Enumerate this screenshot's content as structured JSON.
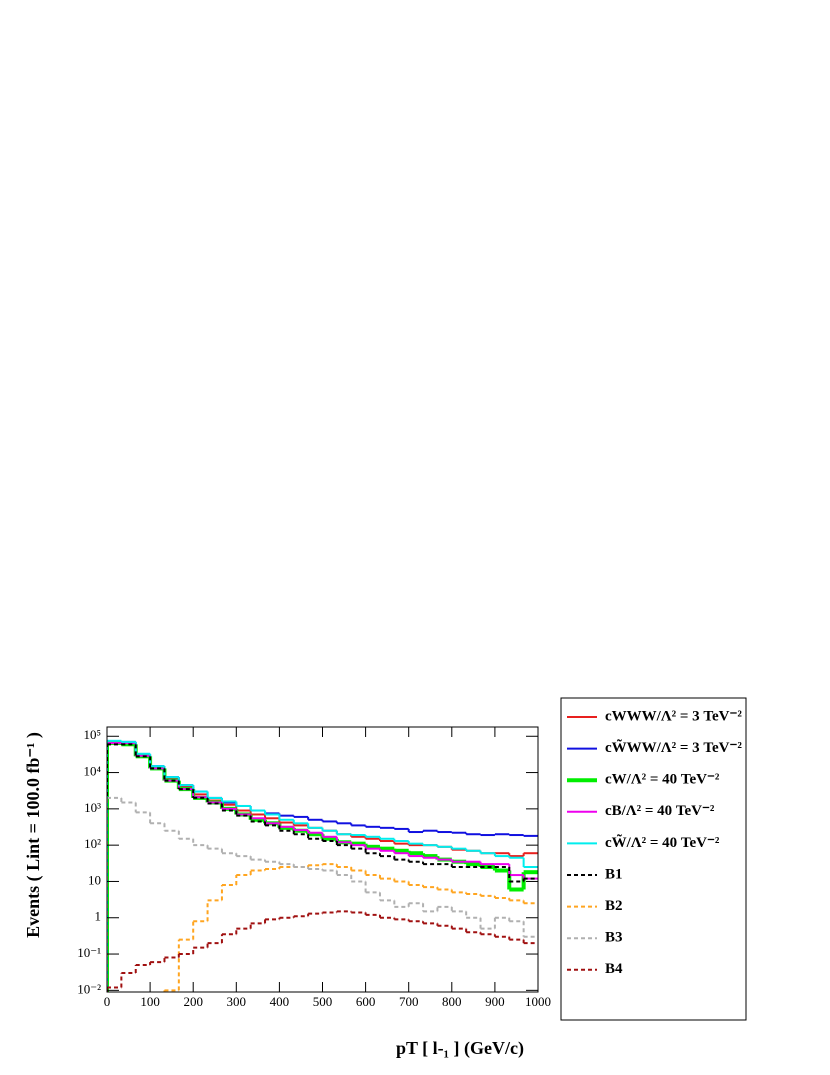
{
  "chart_data": {
    "type": "histogram",
    "xlabel": "pT [ l-₁ ] (GeV/c)",
    "ylabel": "Events ( Lint = 100.0 fb⁻¹ )",
    "log_y": true,
    "xlim": [
      0,
      1000
    ],
    "ylim": [
      0.009,
      180000
    ],
    "xticks": [
      0,
      100,
      200,
      300,
      400,
      500,
      600,
      700,
      800,
      900,
      1000
    ],
    "yticks": [
      {
        "value": 0.01,
        "label": "10⁻²"
      },
      {
        "value": 0.1,
        "label": "10⁻¹"
      },
      1,
      10,
      {
        "value": 100,
        "label": "10²"
      },
      {
        "value": 1000,
        "label": "10³"
      },
      {
        "value": 10000,
        "label": "10⁴"
      },
      {
        "value": 100000,
        "label": "10⁵"
      }
    ],
    "bins": [
      0,
      33.33,
      66.67,
      100,
      133.33,
      166.67,
      200,
      233.33,
      266.67,
      300,
      333.33,
      366.67,
      400,
      433.33,
      466.67,
      500,
      533.33,
      566.67,
      600,
      633.33,
      666.67,
      700,
      733.33,
      766.67,
      800,
      833.33,
      866.67,
      900,
      933.33,
      966.67,
      1000
    ],
    "series": [
      {
        "name": "cWWW/Λ² = 3 TeV⁻²",
        "color": "#e8201e",
        "style": "solid",
        "values": [
          70000,
          65000,
          30000,
          14000,
          7000,
          4000,
          2500,
          1700,
          1300,
          900,
          700,
          550,
          420,
          350,
          300,
          250,
          200,
          170,
          150,
          130,
          110,
          100,
          100,
          90,
          75,
          70,
          60,
          60,
          50,
          60
        ]
      },
      {
        "name": "cW̃WW/Λ² = 3 TeV⁻²",
        "color": "#1010e0",
        "style": "solid",
        "values": [
          70000,
          70000,
          32000,
          15000,
          7500,
          4500,
          3000,
          2000,
          1500,
          1200,
          900,
          750,
          650,
          600,
          500,
          450,
          400,
          350,
          320,
          300,
          280,
          230,
          250,
          230,
          220,
          200,
          190,
          200,
          190,
          180
        ]
      },
      {
        "name": "cW/Λ² = 40 TeV⁻²",
        "color": "#00ee00",
        "style": "thick",
        "values": [
          65000,
          60000,
          28000,
          13000,
          6000,
          3500,
          2000,
          1500,
          1000,
          700,
          500,
          400,
          300,
          250,
          200,
          150,
          120,
          110,
          90,
          80,
          70,
          60,
          50,
          40,
          35,
          30,
          25,
          20,
          6,
          18
        ]
      },
      {
        "name": "cB/Λ² = 40 TeV⁻²",
        "color": "#ee00ee",
        "style": "solid",
        "values": [
          65000,
          65000,
          29000,
          13000,
          6000,
          3500,
          2100,
          1500,
          1000,
          700,
          550,
          400,
          320,
          260,
          220,
          170,
          120,
          100,
          80,
          70,
          60,
          50,
          45,
          40,
          35,
          35,
          30,
          30,
          15,
          12
        ]
      },
      {
        "name": "cW̃/Λ² = 40 TeV⁻²",
        "color": "#00eeee",
        "style": "solid",
        "values": [
          75000,
          70000,
          33000,
          15000,
          7500,
          4500,
          3000,
          2000,
          1600,
          1200,
          900,
          700,
          500,
          400,
          300,
          250,
          200,
          190,
          170,
          150,
          130,
          110,
          100,
          90,
          80,
          70,
          60,
          50,
          45,
          25
        ]
      },
      {
        "name": "B1",
        "color": "#000000",
        "style": "dashed",
        "values": [
          60000,
          60000,
          28000,
          13000,
          6000,
          3500,
          2000,
          1400,
          900,
          650,
          450,
          350,
          250,
          200,
          150,
          130,
          100,
          80,
          60,
          50,
          40,
          35,
          30,
          30,
          25,
          25,
          25,
          25,
          10,
          12
        ]
      },
      {
        "name": "B2",
        "color": "#ffa520",
        "style": "dashed",
        "values": [
          null,
          null,
          null,
          null,
          0.01,
          0.25,
          0.8,
          3,
          8,
          15,
          20,
          22,
          25,
          25,
          28,
          30,
          25,
          20,
          15,
          12,
          10,
          8,
          7,
          6,
          5,
          4.5,
          4,
          3.5,
          3,
          2.5
        ]
      },
      {
        "name": "B3",
        "color": "#b0b0b0",
        "style": "dashed",
        "values": [
          2000,
          1500,
          800,
          400,
          250,
          150,
          100,
          80,
          60,
          50,
          40,
          35,
          30,
          25,
          22,
          20,
          15,
          10,
          5,
          3,
          2,
          2.5,
          1.5,
          2,
          1.5,
          1,
          0.5,
          1,
          0.8,
          0.3
        ]
      },
      {
        "name": "B4",
        "color": "#a01010",
        "style": "dashed",
        "values": [
          0.012,
          0.03,
          0.05,
          0.06,
          0.08,
          0.1,
          0.15,
          0.2,
          0.35,
          0.5,
          0.7,
          0.9,
          1.0,
          1.1,
          1.3,
          1.4,
          1.5,
          1.4,
          1.2,
          1.0,
          0.9,
          0.8,
          0.7,
          0.6,
          0.5,
          0.4,
          0.35,
          0.3,
          0.25,
          0.2
        ]
      }
    ]
  }
}
